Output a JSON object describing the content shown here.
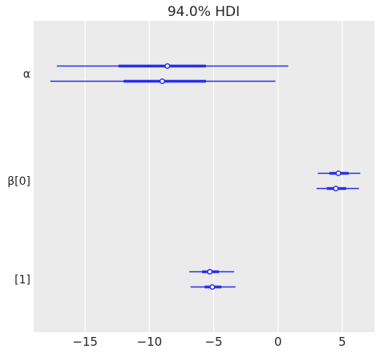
{
  "chart_data": {
    "type": "forest",
    "title": "94.0% HDI",
    "xlabel": "",
    "ylabel": "",
    "xlim": [
      -19,
      7.5
    ],
    "x_ticks": [
      -15,
      -10,
      -5,
      0,
      5
    ],
    "x_tick_labels": [
      "−15",
      "−10",
      "−5",
      "0",
      "5"
    ],
    "grid": true,
    "background": "#ebebeb",
    "line_color": "#2a2eec",
    "parameters": [
      {
        "label": "α",
        "intervals": [
          {
            "hdi_low": -17.2,
            "hdi_high": 0.8,
            "q_low": -12.4,
            "q_high": -5.6,
            "point": -8.6
          },
          {
            "hdi_low": -17.7,
            "hdi_high": -0.2,
            "q_low": -12.0,
            "q_high": -5.6,
            "point": -9.0
          }
        ]
      },
      {
        "label": "β[0]",
        "intervals": [
          {
            "hdi_low": 3.1,
            "hdi_high": 6.4,
            "q_low": 4.0,
            "q_high": 5.5,
            "point": 4.7
          },
          {
            "hdi_low": 3.0,
            "hdi_high": 6.3,
            "q_low": 3.8,
            "q_high": 5.3,
            "point": 4.5
          }
        ]
      },
      {
        "label": "[1]",
        "intervals": [
          {
            "hdi_low": -6.9,
            "hdi_high": -3.4,
            "q_low": -5.9,
            "q_high": -4.6,
            "point": -5.3
          },
          {
            "hdi_low": -6.8,
            "hdi_high": -3.3,
            "q_low": -5.7,
            "q_high": -4.4,
            "point": -5.1
          }
        ]
      }
    ]
  }
}
